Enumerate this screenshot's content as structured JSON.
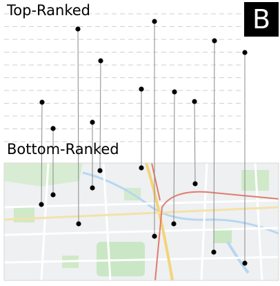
{
  "labels": {
    "top": "Top-Ranked",
    "bottom": "Bottom-Ranked"
  },
  "badge": "B",
  "colors": {
    "dashed_line": "#cfcfcf",
    "connector": "#888888",
    "point": "#000000",
    "map_base": "#eef0f2",
    "map_green": "#c9e7c4",
    "map_road_major": "#f3d47a",
    "map_road_red": "#e07b6b",
    "map_water": "#b8d6f0"
  },
  "points": [
    {
      "top": [
        113,
        42
      ],
      "bottom": [
        114,
        324
      ]
    },
    {
      "top": [
        224,
        31
      ],
      "bottom": [
        224,
        342
      ]
    },
    {
      "top": [
        311,
        59
      ],
      "bottom": [
        310,
        365
      ]
    },
    {
      "top": [
        355,
        76
      ],
      "bottom": [
        355,
        381
      ]
    },
    {
      "top": [
        146,
        88
      ],
      "bottom": [
        145,
        247
      ]
    },
    {
      "top": [
        205,
        129
      ],
      "bottom": [
        205,
        243
      ]
    },
    {
      "top": [
        253,
        133
      ],
      "bottom": [
        252,
        324
      ]
    },
    {
      "top": [
        282,
        147
      ],
      "bottom": [
        283,
        266
      ]
    },
    {
      "top": [
        61,
        148
      ],
      "bottom": [
        60,
        296
      ]
    },
    {
      "top": [
        134,
        177
      ],
      "bottom": [
        134,
        272
      ]
    },
    {
      "top": [
        77,
        186
      ],
      "bottom": [
        77,
        282
      ]
    }
  ]
}
